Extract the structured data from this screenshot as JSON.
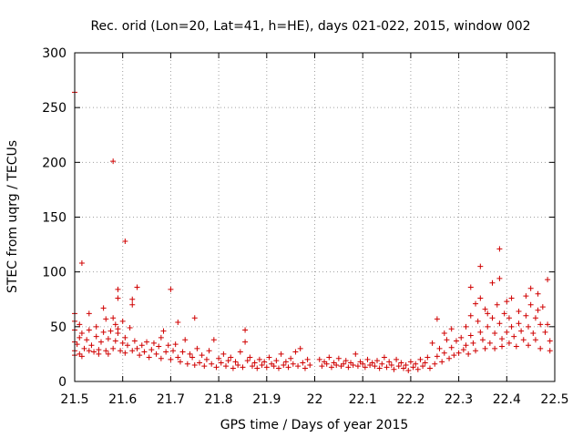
{
  "chart_data": {
    "type": "scatter",
    "title": "Rec. orid (Lon=20, Lat=41, h=HE), days 021-022, 2015, window 002",
    "xlabel": "GPS time / Days of year 2015",
    "ylabel": "STEC from uqrg / TECUs",
    "xlim": [
      21.5,
      22.5
    ],
    "ylim": [
      0,
      300
    ],
    "x_ticks": [
      "21.5",
      "21.6",
      "21.7",
      "21.8",
      "21.9",
      "22",
      "22.1",
      "22.2",
      "22.3",
      "22.4",
      "22.5"
    ],
    "y_ticks": [
      "0",
      "50",
      "100",
      "150",
      "200",
      "250",
      "300"
    ],
    "grid": true,
    "marker": "+",
    "color": "#d00000",
    "series": [
      {
        "name": "STEC",
        "points": [
          [
            21.5,
            264
          ],
          [
            21.5,
            62
          ],
          [
            21.5,
            55
          ],
          [
            21.5,
            47
          ],
          [
            21.5,
            36
          ],
          [
            21.5,
            28
          ],
          [
            21.5,
            24
          ],
          [
            21.505,
            34
          ],
          [
            21.51,
            52
          ],
          [
            21.51,
            40
          ],
          [
            21.51,
            25
          ],
          [
            21.515,
            108
          ],
          [
            21.515,
            44
          ],
          [
            21.515,
            23
          ],
          [
            21.52,
            30
          ],
          [
            21.525,
            38
          ],
          [
            21.53,
            62
          ],
          [
            21.53,
            47
          ],
          [
            21.53,
            28
          ],
          [
            21.535,
            33
          ],
          [
            21.54,
            27
          ],
          [
            21.545,
            50
          ],
          [
            21.545,
            41
          ],
          [
            21.55,
            29
          ],
          [
            21.55,
            25
          ],
          [
            21.555,
            36
          ],
          [
            21.56,
            67
          ],
          [
            21.56,
            45
          ],
          [
            21.565,
            57
          ],
          [
            21.565,
            28
          ],
          [
            21.57,
            39
          ],
          [
            21.57,
            25
          ],
          [
            21.575,
            46
          ],
          [
            21.58,
            201
          ],
          [
            21.58,
            58
          ],
          [
            21.58,
            30
          ],
          [
            21.585,
            52
          ],
          [
            21.585,
            37
          ],
          [
            21.59,
            76
          ],
          [
            21.59,
            84
          ],
          [
            21.59,
            48
          ],
          [
            21.59,
            44
          ],
          [
            21.595,
            28
          ],
          [
            21.6,
            55
          ],
          [
            21.6,
            35
          ],
          [
            21.605,
            128
          ],
          [
            21.605,
            40
          ],
          [
            21.605,
            26
          ],
          [
            21.61,
            33
          ],
          [
            21.615,
            49
          ],
          [
            21.62,
            75
          ],
          [
            21.62,
            70
          ],
          [
            21.62,
            28
          ],
          [
            21.625,
            37
          ],
          [
            21.63,
            86
          ],
          [
            21.63,
            30
          ],
          [
            21.635,
            24
          ],
          [
            21.64,
            33
          ],
          [
            21.645,
            27
          ],
          [
            21.65,
            36
          ],
          [
            21.655,
            22
          ],
          [
            21.66,
            29
          ],
          [
            21.665,
            35
          ],
          [
            21.67,
            25
          ],
          [
            21.675,
            32
          ],
          [
            21.68,
            40
          ],
          [
            21.68,
            21
          ],
          [
            21.685,
            46
          ],
          [
            21.69,
            27
          ],
          [
            21.695,
            33
          ],
          [
            21.7,
            84
          ],
          [
            21.7,
            20
          ],
          [
            21.705,
            28
          ],
          [
            21.71,
            34
          ],
          [
            21.715,
            54
          ],
          [
            21.715,
            22
          ],
          [
            21.72,
            18
          ],
          [
            21.725,
            27
          ],
          [
            21.73,
            38
          ],
          [
            21.735,
            16
          ],
          [
            21.74,
            25
          ],
          [
            21.745,
            22
          ],
          [
            21.75,
            58
          ],
          [
            21.75,
            15
          ],
          [
            21.755,
            30
          ],
          [
            21.76,
            17
          ],
          [
            21.765,
            24
          ],
          [
            21.77,
            14
          ],
          [
            21.775,
            20
          ],
          [
            21.78,
            28
          ],
          [
            21.785,
            16
          ],
          [
            21.79,
            38
          ],
          [
            21.795,
            13
          ],
          [
            21.8,
            21
          ],
          [
            21.805,
            17
          ],
          [
            21.81,
            25
          ],
          [
            21.815,
            14
          ],
          [
            21.82,
            19
          ],
          [
            21.825,
            22
          ],
          [
            21.83,
            12
          ],
          [
            21.835,
            18
          ],
          [
            21.84,
            15
          ],
          [
            21.845,
            27
          ],
          [
            21.85,
            13
          ],
          [
            21.855,
            47
          ],
          [
            21.855,
            36
          ],
          [
            21.86,
            19
          ],
          [
            21.865,
            22
          ],
          [
            21.87,
            14
          ],
          [
            21.875,
            17
          ],
          [
            21.88,
            12
          ],
          [
            21.885,
            20
          ],
          [
            21.89,
            15
          ],
          [
            21.895,
            18
          ],
          [
            21.9,
            13
          ],
          [
            21.905,
            22
          ],
          [
            21.91,
            16
          ],
          [
            21.915,
            14
          ],
          [
            21.92,
            19
          ],
          [
            21.925,
            12
          ],
          [
            21.93,
            25
          ],
          [
            21.935,
            15
          ],
          [
            21.94,
            18
          ],
          [
            21.945,
            13
          ],
          [
            21.95,
            21
          ],
          [
            21.955,
            16
          ],
          [
            21.96,
            27
          ],
          [
            21.965,
            14
          ],
          [
            21.97,
            30
          ],
          [
            21.975,
            17
          ],
          [
            21.98,
            12
          ],
          [
            21.985,
            20
          ],
          [
            21.99,
            15
          ],
          [
            22.01,
            20
          ],
          [
            22.015,
            14
          ],
          [
            22.02,
            18
          ],
          [
            22.025,
            16
          ],
          [
            22.03,
            22
          ],
          [
            22.035,
            13
          ],
          [
            22.04,
            17
          ],
          [
            22.045,
            15
          ],
          [
            22.05,
            21
          ],
          [
            22.055,
            14
          ],
          [
            22.06,
            16
          ],
          [
            22.065,
            19
          ],
          [
            22.07,
            13
          ],
          [
            22.075,
            17
          ],
          [
            22.08,
            15
          ],
          [
            22.085,
            25
          ],
          [
            22.09,
            14
          ],
          [
            22.095,
            18
          ],
          [
            22.1,
            16
          ],
          [
            22.105,
            13
          ],
          [
            22.11,
            20
          ],
          [
            22.115,
            15
          ],
          [
            22.12,
            17
          ],
          [
            22.125,
            14
          ],
          [
            22.13,
            19
          ],
          [
            22.135,
            12
          ],
          [
            22.14,
            16
          ],
          [
            22.145,
            22
          ],
          [
            22.15,
            13
          ],
          [
            22.155,
            18
          ],
          [
            22.16,
            15
          ],
          [
            22.165,
            11
          ],
          [
            22.17,
            20
          ],
          [
            22.175,
            14
          ],
          [
            22.18,
            17
          ],
          [
            22.185,
            12
          ],
          [
            22.19,
            15
          ],
          [
            22.195,
            10
          ],
          [
            22.2,
            18
          ],
          [
            22.205,
            13
          ],
          [
            22.21,
            16
          ],
          [
            22.215,
            11
          ],
          [
            22.22,
            20
          ],
          [
            22.225,
            14
          ],
          [
            22.23,
            17
          ],
          [
            22.235,
            22
          ],
          [
            22.24,
            12
          ],
          [
            22.245,
            35
          ],
          [
            22.25,
            16
          ],
          [
            22.255,
            57
          ],
          [
            22.255,
            23
          ],
          [
            22.26,
            30
          ],
          [
            22.265,
            18
          ],
          [
            22.27,
            44
          ],
          [
            22.27,
            26
          ],
          [
            22.275,
            38
          ],
          [
            22.28,
            21
          ],
          [
            22.285,
            48
          ],
          [
            22.285,
            31
          ],
          [
            22.29,
            24
          ],
          [
            22.295,
            37
          ],
          [
            22.3,
            26
          ],
          [
            22.305,
            40
          ],
          [
            22.31,
            29
          ],
          [
            22.315,
            50
          ],
          [
            22.315,
            33
          ],
          [
            22.32,
            25
          ],
          [
            22.325,
            86
          ],
          [
            22.325,
            60
          ],
          [
            22.325,
            42
          ],
          [
            22.33,
            35
          ],
          [
            22.335,
            71
          ],
          [
            22.335,
            28
          ],
          [
            22.34,
            55
          ],
          [
            22.345,
            105
          ],
          [
            22.345,
            76
          ],
          [
            22.345,
            45
          ],
          [
            22.35,
            38
          ],
          [
            22.355,
            66
          ],
          [
            22.355,
            30
          ],
          [
            22.36,
            62
          ],
          [
            22.36,
            50
          ],
          [
            22.365,
            35
          ],
          [
            22.37,
            90
          ],
          [
            22.37,
            58
          ],
          [
            22.375,
            44
          ],
          [
            22.375,
            30
          ],
          [
            22.38,
            70
          ],
          [
            22.385,
            121
          ],
          [
            22.385,
            94
          ],
          [
            22.385,
            53
          ],
          [
            22.39,
            39
          ],
          [
            22.39,
            32
          ],
          [
            22.395,
            62
          ],
          [
            22.4,
            73
          ],
          [
            22.4,
            45
          ],
          [
            22.405,
            58
          ],
          [
            22.405,
            35
          ],
          [
            22.41,
            76
          ],
          [
            22.41,
            50
          ],
          [
            22.415,
            41
          ],
          [
            22.42,
            32
          ],
          [
            22.425,
            64
          ],
          [
            22.425,
            53
          ],
          [
            22.43,
            46
          ],
          [
            22.435,
            38
          ],
          [
            22.44,
            78
          ],
          [
            22.44,
            60
          ],
          [
            22.445,
            50
          ],
          [
            22.445,
            33
          ],
          [
            22.45,
            85
          ],
          [
            22.45,
            70
          ],
          [
            22.455,
            44
          ],
          [
            22.46,
            58
          ],
          [
            22.46,
            38
          ],
          [
            22.465,
            80
          ],
          [
            22.465,
            65
          ],
          [
            22.47,
            52
          ],
          [
            22.47,
            30
          ],
          [
            22.475,
            68
          ],
          [
            22.48,
            45
          ],
          [
            22.485,
            93
          ],
          [
            22.485,
            52
          ],
          [
            22.49,
            37
          ],
          [
            22.49,
            28
          ]
        ]
      }
    ]
  }
}
